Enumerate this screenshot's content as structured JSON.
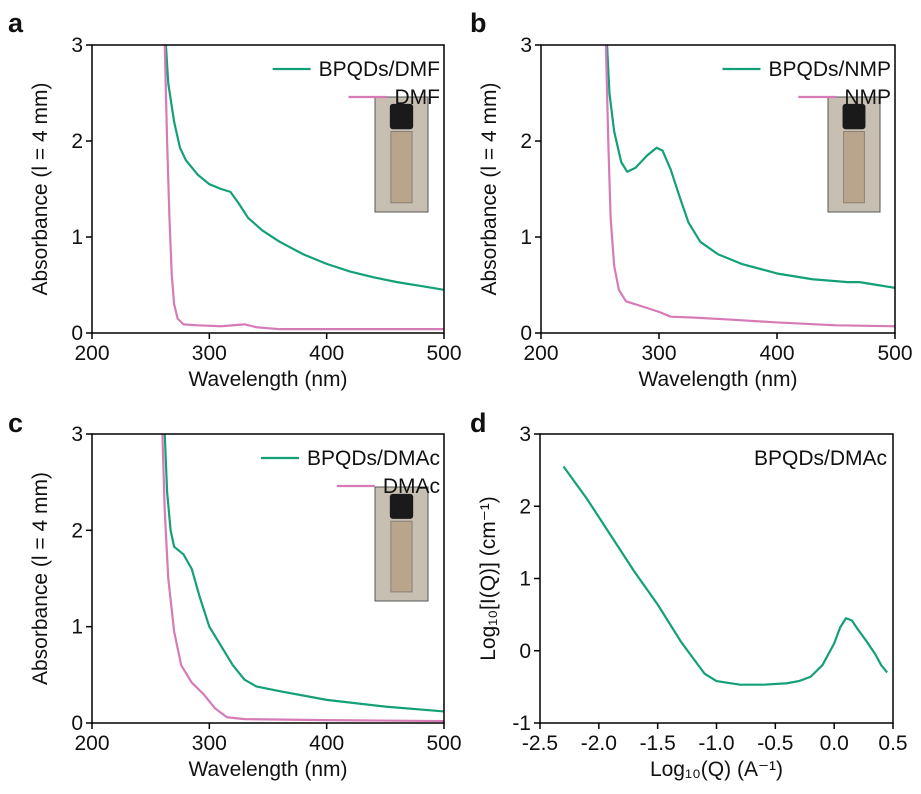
{
  "chart_data": [
    {
      "type": "line",
      "label": "a",
      "xlabel": "Wavelength (nm)",
      "ylabel": "Absorbance (l = 4 mm)",
      "xlim": [
        200,
        500
      ],
      "xticks": [
        200,
        300,
        400,
        500
      ],
      "ylim": [
        0,
        3
      ],
      "yticks": [
        0,
        1,
        2,
        3
      ],
      "grid": false,
      "legend": "upper right",
      "series": [
        {
          "name": "BPQDs/DMF",
          "color": "#13a079",
          "x": [
            263,
            265,
            270,
            275,
            280,
            290,
            300,
            310,
            318,
            325,
            333,
            345,
            360,
            380,
            400,
            420,
            440,
            460,
            480,
            500
          ],
          "values": [
            3,
            2.6,
            2.2,
            1.93,
            1.8,
            1.65,
            1.55,
            1.5,
            1.47,
            1.35,
            1.2,
            1.07,
            0.95,
            0.82,
            0.72,
            0.64,
            0.58,
            0.53,
            0.49,
            0.45
          ]
        },
        {
          "name": "DMF",
          "color": "#d67bb6",
          "x": [
            262,
            264,
            266,
            268,
            270,
            273,
            278,
            290,
            310,
            330,
            340,
            360,
            400,
            500
          ],
          "values": [
            3,
            2.0,
            1.2,
            0.6,
            0.3,
            0.15,
            0.09,
            0.08,
            0.07,
            0.09,
            0.06,
            0.04,
            0.04,
            0.04
          ]
        }
      ]
    },
    {
      "type": "line",
      "label": "b",
      "xlabel": "Wavelength (nm)",
      "ylabel": "Absorbance (l = 4 mm)",
      "xlim": [
        200,
        500
      ],
      "xticks": [
        200,
        300,
        400,
        500
      ],
      "ylim": [
        0,
        3
      ],
      "yticks": [
        0,
        1,
        2,
        3
      ],
      "grid": false,
      "legend": "upper right",
      "series": [
        {
          "name": "BPQDs/NMP",
          "color": "#13a079",
          "x": [
            256,
            258,
            262,
            268,
            273,
            280,
            290,
            298,
            303,
            310,
            318,
            325,
            335,
            350,
            370,
            400,
            430,
            460,
            470,
            485,
            500
          ],
          "values": [
            3,
            2.5,
            2.1,
            1.78,
            1.68,
            1.72,
            1.85,
            1.93,
            1.9,
            1.7,
            1.4,
            1.15,
            0.95,
            0.82,
            0.72,
            0.62,
            0.56,
            0.53,
            0.53,
            0.5,
            0.47
          ]
        },
        {
          "name": "NMP",
          "color": "#d67bb6",
          "x": [
            255,
            257,
            259,
            262,
            266,
            272,
            285,
            300,
            310,
            330,
            360,
            400,
            450,
            500
          ],
          "values": [
            3,
            2.0,
            1.2,
            0.7,
            0.45,
            0.33,
            0.28,
            0.22,
            0.17,
            0.16,
            0.14,
            0.11,
            0.08,
            0.07
          ]
        }
      ]
    },
    {
      "type": "line",
      "label": "c",
      "xlabel": "Wavelength (nm)",
      "ylabel": "Absorbance (l = 4 mm)",
      "xlim": [
        200,
        500
      ],
      "xticks": [
        200,
        300,
        400,
        500
      ],
      "ylim": [
        0,
        3
      ],
      "yticks": [
        0,
        1,
        2,
        3
      ],
      "grid": false,
      "legend": "upper right",
      "series": [
        {
          "name": "BPQDs/DMAc",
          "color": "#13a079",
          "x": [
            262,
            264,
            267,
            270,
            278,
            285,
            292,
            300,
            310,
            320,
            330,
            340,
            360,
            400,
            450,
            500
          ],
          "values": [
            3,
            2.4,
            2.0,
            1.83,
            1.75,
            1.6,
            1.3,
            1.0,
            0.8,
            0.6,
            0.45,
            0.38,
            0.33,
            0.24,
            0.17,
            0.12
          ]
        },
        {
          "name": "DMAc",
          "color": "#d67bb6",
          "x": [
            260,
            262,
            265,
            270,
            276,
            285,
            295,
            305,
            315,
            330,
            400,
            500
          ],
          "values": [
            3,
            2.2,
            1.5,
            0.95,
            0.6,
            0.42,
            0.3,
            0.15,
            0.06,
            0.04,
            0.03,
            0.02
          ]
        }
      ]
    },
    {
      "type": "line",
      "label": "d",
      "xlabel": "Log₁₀(Q) (A⁻¹)",
      "ylabel": "Log₁₀[I(Q)] (cm⁻¹)",
      "annotation": "BPQDs/DMAc",
      "xlim": [
        -2.5,
        0.5
      ],
      "xticks": [
        -2.5,
        {
          "value": -2,
          "label": "-2.0"
        },
        -1.5,
        {
          "value": -1,
          "label": "-1.0"
        },
        -0.5,
        {
          "value": 0,
          "label": "0.0"
        },
        0.5
      ],
      "ylim": [
        -1,
        3
      ],
      "yticks": [
        -1,
        0,
        1,
        2,
        3
      ],
      "grid": false,
      "series": [
        {
          "color": "#13a079",
          "x": [
            -2.3,
            -2.1,
            -1.9,
            -1.7,
            -1.5,
            -1.3,
            -1.2,
            -1.1,
            -1.0,
            -0.8,
            -0.6,
            -0.4,
            -0.3,
            -0.2,
            -0.1,
            0,
            0.05,
            0.1,
            0.15,
            0.2,
            0.28,
            0.35,
            0.4,
            0.45
          ],
          "values": [
            2.55,
            2.1,
            1.6,
            1.1,
            0.64,
            0.12,
            -0.1,
            -0.32,
            -0.42,
            -0.47,
            -0.47,
            -0.45,
            -0.42,
            -0.36,
            -0.2,
            0.1,
            0.32,
            0.45,
            0.42,
            0.3,
            0.12,
            -0.05,
            -0.2,
            -0.3
          ]
        }
      ]
    }
  ]
}
